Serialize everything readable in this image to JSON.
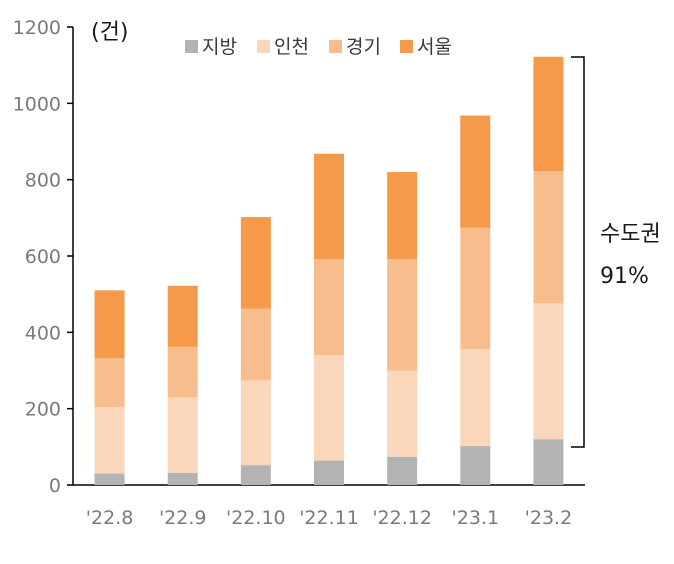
{
  "chart_data": {
    "type": "bar",
    "stacked": true,
    "unit_label": "(건)",
    "categories": [
      "'22.8",
      "'22.9",
      "'22.10",
      "'22.11",
      "'22.12",
      "'23.1",
      "'23.2"
    ],
    "series": [
      {
        "name": "지방",
        "color": "#b3b3b3",
        "values": [
          30,
          32,
          52,
          64,
          74,
          102,
          120
        ]
      },
      {
        "name": "인천",
        "color": "#fad6bb",
        "values": [
          174,
          198,
          222,
          276,
          226,
          254,
          356
        ]
      },
      {
        "name": "경기",
        "color": "#f8bd8c",
        "values": [
          128,
          132,
          188,
          252,
          292,
          318,
          346
        ]
      },
      {
        "name": "서울",
        "color": "#f59a4a",
        "values": [
          178,
          160,
          240,
          276,
          228,
          294,
          300
        ]
      }
    ],
    "yticks": [
      "0",
      "200",
      "400",
      "600",
      "800",
      "1000",
      "1200"
    ],
    "ylim": [
      0,
      1200
    ],
    "grid": false,
    "legend_position": "top",
    "annotation": {
      "label": "수도권",
      "value": "91%"
    }
  }
}
